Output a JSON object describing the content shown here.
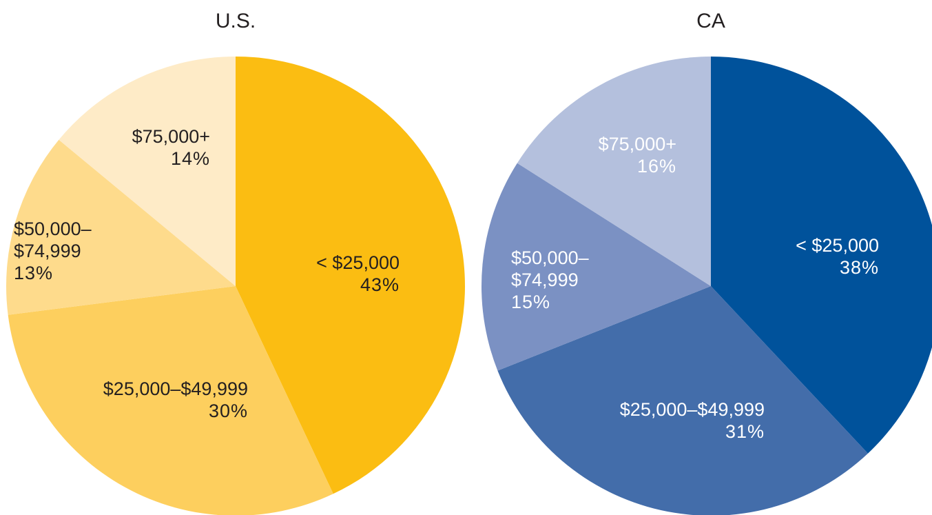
{
  "chart_data": [
    {
      "type": "pie",
      "title": "U.S.",
      "categories": [
        "< $25,000",
        "$25,000–$49,999",
        "$50,000–$74,999",
        "$75,000+"
      ],
      "values": [
        43,
        30,
        13,
        14
      ],
      "value_labels": [
        "43%",
        "30%",
        "13%",
        "14%"
      ],
      "colors": [
        "#fbbd12",
        "#fdcf5e",
        "#fedb8c",
        "#feebc7"
      ],
      "label_color": "#231f20"
    },
    {
      "type": "pie",
      "title": "CA",
      "categories": [
        "< $25,000",
        "$25,000–$49,999",
        "$50,000–$74,999",
        "$75,000+"
      ],
      "values": [
        38,
        31,
        15,
        16
      ],
      "value_labels": [
        "38%",
        "31%",
        "15%",
        "16%"
      ],
      "colors": [
        "#00529b",
        "#436daa",
        "#7b91c3",
        "#b4c0dd"
      ],
      "label_color": "#ffffff"
    }
  ]
}
